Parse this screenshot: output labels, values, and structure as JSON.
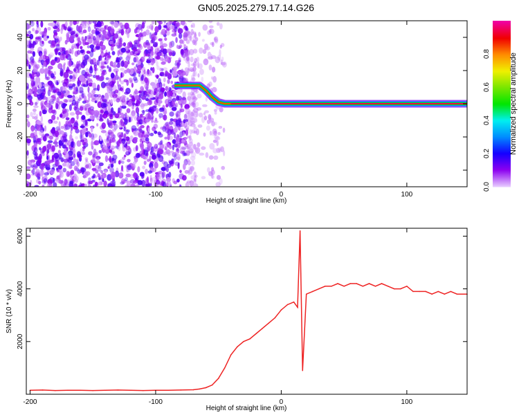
{
  "title": "GN05.2025.279.17.14.G26",
  "chart_data": [
    {
      "type": "heatmap",
      "xlabel": "Height of straight line (km)",
      "ylabel": "Frequency (Hz)",
      "xlim": [
        -203,
        148
      ],
      "ylim": [
        -50,
        50
      ],
      "xticks": [
        -200,
        -100,
        0,
        100
      ],
      "yticks": [
        -40,
        -20,
        0,
        20,
        40
      ],
      "colorbar": {
        "label": "Normalized spectral amplitude",
        "range": [
          0,
          1
        ],
        "ticks": [
          "0.0",
          "0.2",
          "0.4",
          "0.6",
          "0.8"
        ]
      },
      "noise_region_x": [
        -203,
        -60
      ],
      "ridge": {
        "x": [
          -85,
          -75,
          -65,
          -60,
          -55,
          -50,
          -45,
          -40,
          -30,
          -20,
          -10,
          0,
          10,
          20,
          40,
          60,
          80,
          100,
          120,
          148
        ],
        "y": [
          11,
          11,
          11,
          8,
          4,
          1,
          0,
          0,
          0,
          0,
          0,
          0,
          0,
          0,
          0,
          0,
          0,
          0,
          0,
          0
        ]
      }
    },
    {
      "type": "line",
      "xlabel": "Height of straight line (km)",
      "ylabel": "SNR (10 * v/v)",
      "xlim": [
        -203,
        148
      ],
      "ylim": [
        0,
        6300
      ],
      "xticks": [
        -200,
        -100,
        0,
        100
      ],
      "yticks": [
        2000,
        4000,
        6000
      ],
      "color": "#ee2222",
      "x": [
        -200,
        -190,
        -180,
        -170,
        -160,
        -150,
        -140,
        -130,
        -120,
        -110,
        -100,
        -90,
        -80,
        -70,
        -65,
        -60,
        -55,
        -50,
        -45,
        -40,
        -35,
        -30,
        -25,
        -20,
        -15,
        -10,
        -5,
        0,
        5,
        10,
        13,
        15,
        17,
        20,
        25,
        30,
        35,
        40,
        45,
        50,
        55,
        60,
        65,
        70,
        75,
        80,
        85,
        90,
        95,
        100,
        105,
        110,
        115,
        120,
        125,
        130,
        135,
        140,
        148
      ],
      "y": [
        150,
        160,
        140,
        150,
        150,
        140,
        150,
        160,
        150,
        140,
        150,
        150,
        160,
        170,
        200,
        250,
        350,
        600,
        1000,
        1500,
        1800,
        2000,
        2100,
        2300,
        2500,
        2700,
        2900,
        3200,
        3400,
        3500,
        3300,
        6200,
        900,
        3800,
        3900,
        4000,
        4100,
        4100,
        4200,
        4100,
        4200,
        4200,
        4100,
        4200,
        4100,
        4200,
        4100,
        4000,
        4000,
        4100,
        3900,
        3900,
        3900,
        3800,
        3900,
        3800,
        3900,
        3800,
        3800
      ]
    }
  ]
}
